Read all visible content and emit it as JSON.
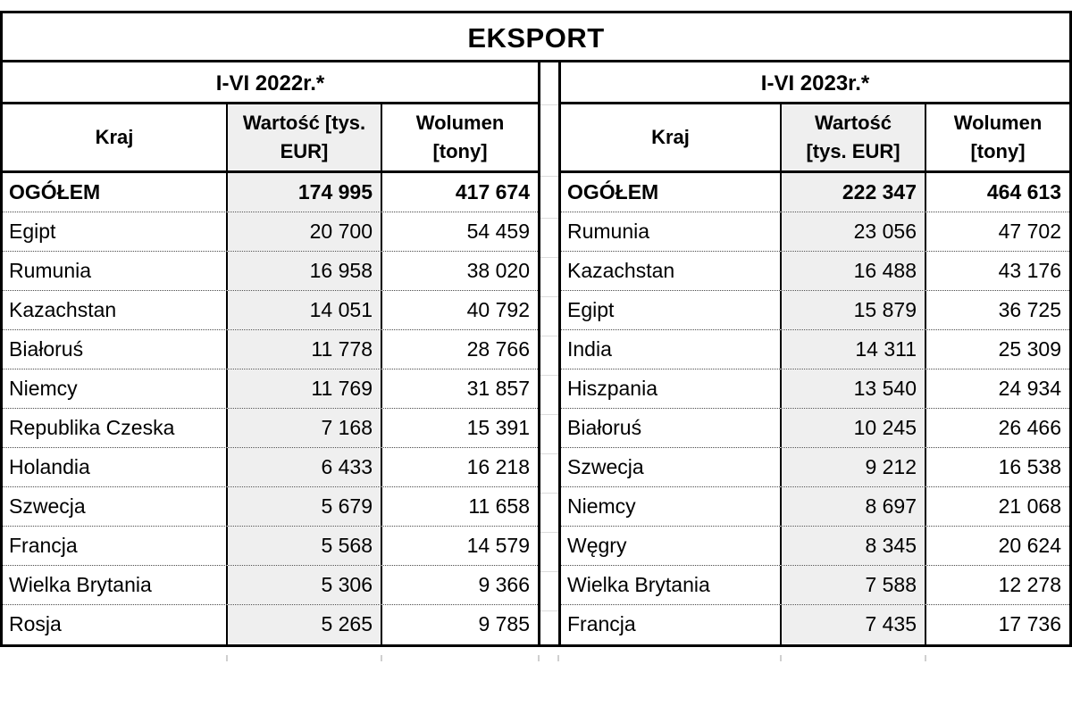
{
  "title": "EKSPORT",
  "tables": [
    {
      "period": "I-VI 2022r.*",
      "columns": {
        "kraj": "Kraj",
        "wartosc": [
          "Wartość [tys.",
          "EUR]"
        ],
        "wolumen": [
          "Wolumen",
          "[tony]"
        ]
      },
      "total": {
        "kraj": "OGÓŁEM",
        "wartosc": "174 995",
        "wolumen": "417 674"
      },
      "rows": [
        {
          "kraj": "Egipt",
          "wartosc": "20 700",
          "wolumen": "54 459"
        },
        {
          "kraj": "Rumunia",
          "wartosc": "16 958",
          "wolumen": "38 020"
        },
        {
          "kraj": "Kazachstan",
          "wartosc": "14 051",
          "wolumen": "40 792"
        },
        {
          "kraj": "Białoruś",
          "wartosc": "11 778",
          "wolumen": "28 766"
        },
        {
          "kraj": "Niemcy",
          "wartosc": "11 769",
          "wolumen": "31 857"
        },
        {
          "kraj": "Republika Czeska",
          "wartosc": "7 168",
          "wolumen": "15 391"
        },
        {
          "kraj": "Holandia",
          "wartosc": "6 433",
          "wolumen": "16 218"
        },
        {
          "kraj": "Szwecja",
          "wartosc": "5 679",
          "wolumen": "11 658"
        },
        {
          "kraj": "Francja",
          "wartosc": "5 568",
          "wolumen": "14 579"
        },
        {
          "kraj": "Wielka Brytania",
          "wartosc": "5 306",
          "wolumen": "9 366"
        },
        {
          "kraj": "Rosja",
          "wartosc": "5 265",
          "wolumen": "9 785"
        }
      ]
    },
    {
      "period": "I-VI 2023r.*",
      "columns": {
        "kraj": "Kraj",
        "wartosc": [
          "Wartość",
          "[tys. EUR]"
        ],
        "wolumen": [
          "Wolumen",
          "[tony]"
        ]
      },
      "total": {
        "kraj": "OGÓŁEM",
        "wartosc": "222 347",
        "wolumen": "464 613"
      },
      "rows": [
        {
          "kraj": "Rumunia",
          "wartosc": "23 056",
          "wolumen": "47 702"
        },
        {
          "kraj": "Kazachstan",
          "wartosc": "16 488",
          "wolumen": "43 176"
        },
        {
          "kraj": "Egipt",
          "wartosc": "15 879",
          "wolumen": "36 725"
        },
        {
          "kraj": "India",
          "wartosc": "14 311",
          "wolumen": "25 309"
        },
        {
          "kraj": "Hiszpania",
          "wartosc": "13 540",
          "wolumen": "24 934"
        },
        {
          "kraj": "Białoruś",
          "wartosc": "10 245",
          "wolumen": "26 466"
        },
        {
          "kraj": "Szwecja",
          "wartosc": "9 212",
          "wolumen": "16 538"
        },
        {
          "kraj": "Niemcy",
          "wartosc": "8 697",
          "wolumen": "21 068"
        },
        {
          "kraj": "Węgry",
          "wartosc": "8 345",
          "wolumen": "20 624"
        },
        {
          "kraj": "Wielka Brytania",
          "wartosc": "7 588",
          "wolumen": "12 278"
        },
        {
          "kraj": "Francja",
          "wartosc": "7 435",
          "wolumen": "17 736"
        }
      ]
    }
  ],
  "styles": {
    "shade_color": "#efefef",
    "border_color": "#000000"
  }
}
